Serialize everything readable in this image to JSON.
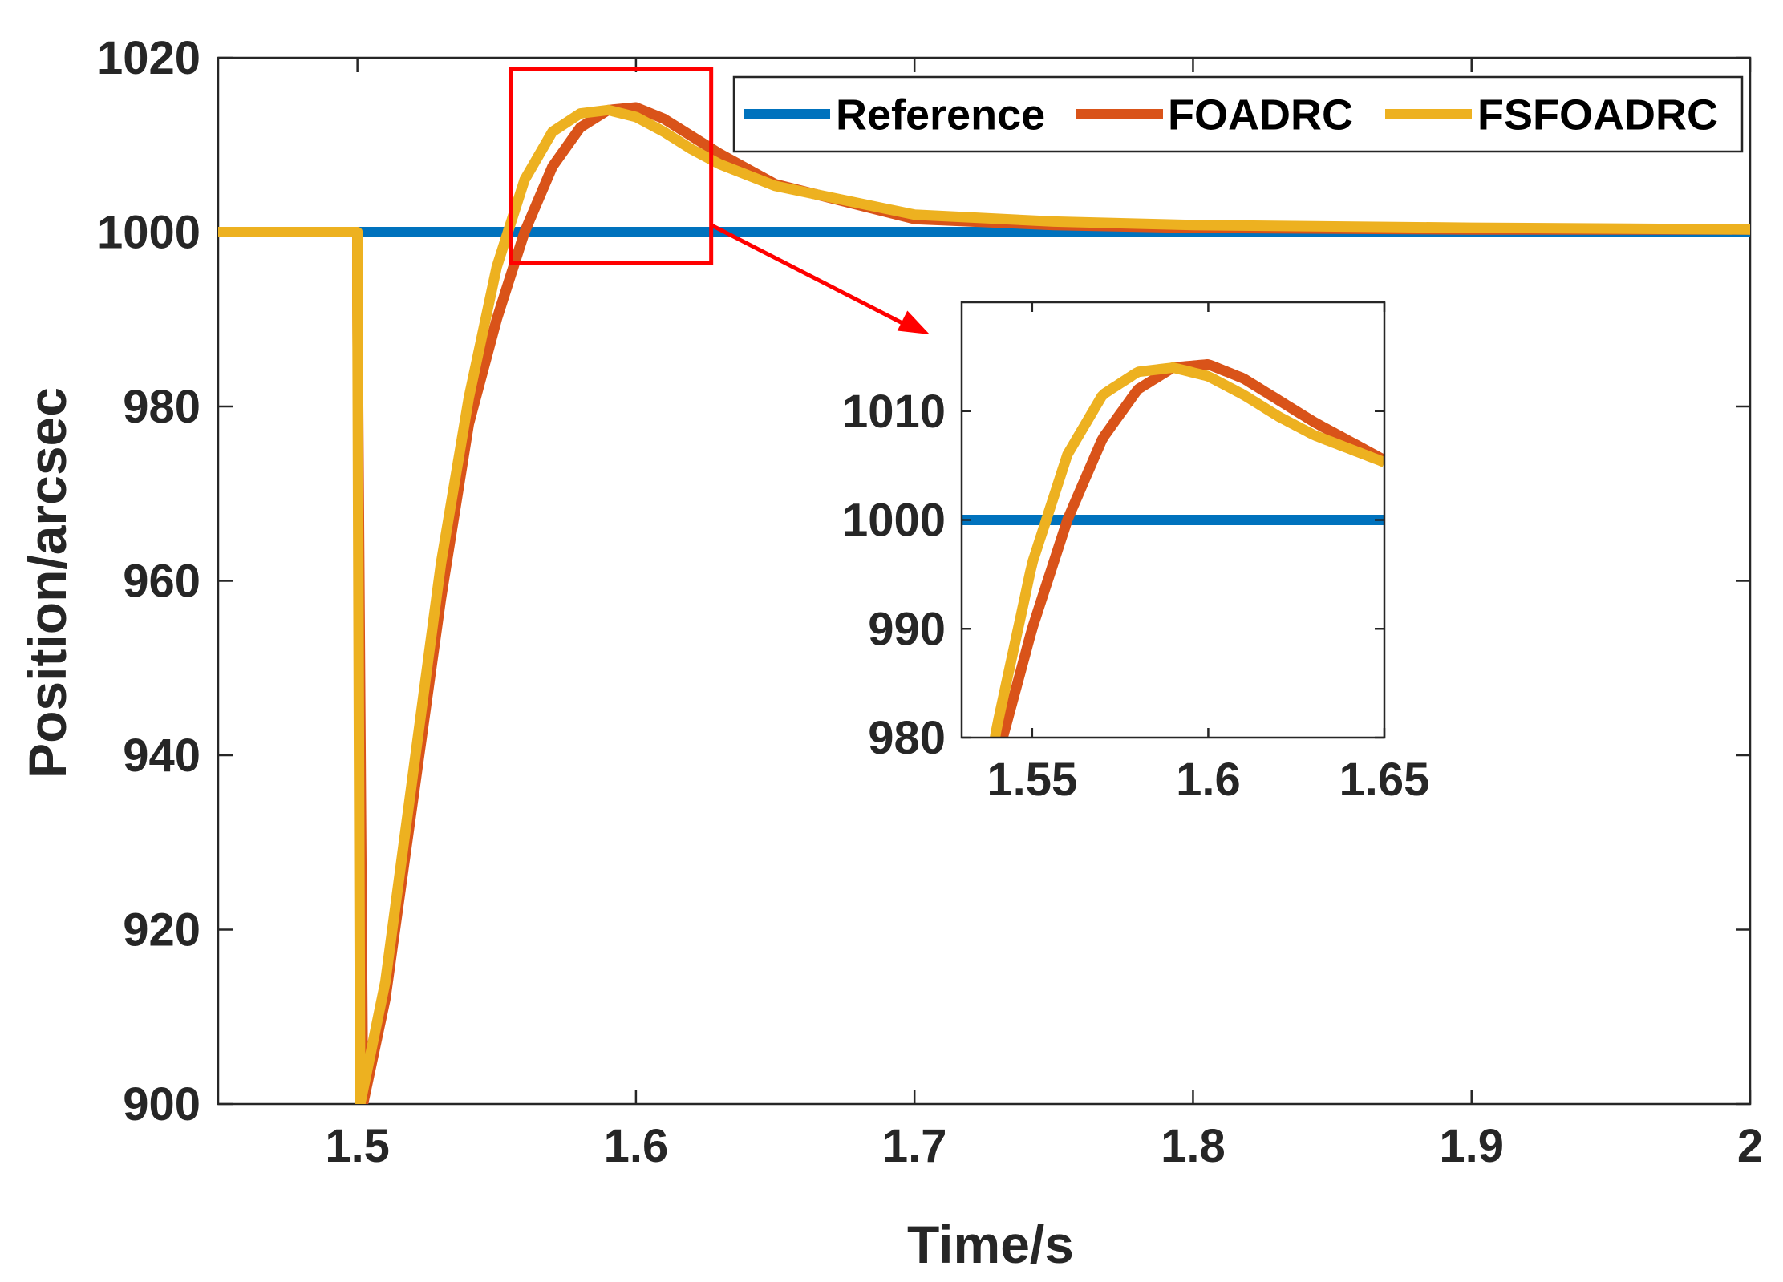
{
  "chart_data": {
    "type": "line",
    "title": "",
    "xlabel": "Time/s",
    "ylabel": "Position/arcsec",
    "xlim": [
      1.45,
      2.0
    ],
    "ylim": [
      900,
      1020
    ],
    "xticks": [
      1.5,
      1.6,
      1.7,
      1.8,
      1.9,
      2.0
    ],
    "xtick_labels": [
      "1.5",
      "1.6",
      "1.7",
      "1.8",
      "1.9",
      "2"
    ],
    "yticks": [
      900,
      920,
      940,
      960,
      980,
      1000,
      1020
    ],
    "ytick_labels": [
      "900",
      "920",
      "940",
      "960",
      "980",
      "1000",
      "1020"
    ],
    "grid": false,
    "legend_position": "top-right",
    "series": [
      {
        "name": "Reference",
        "color": "#0072BD",
        "x": [
          1.45,
          2.0
        ],
        "y": [
          1000,
          1000
        ]
      },
      {
        "name": "FOADRC",
        "color": "#D95319",
        "x": [
          1.45,
          1.5,
          1.5,
          1.502,
          1.51,
          1.52,
          1.53,
          1.54,
          1.55,
          1.555,
          1.56,
          1.57,
          1.58,
          1.59,
          1.6,
          1.61,
          1.62,
          1.63,
          1.65,
          1.7,
          1.75,
          1.8,
          1.9,
          2.0
        ],
        "y": [
          1000,
          1000,
          992,
          900,
          912,
          935,
          958,
          978,
          990,
          995,
          1000,
          1007.5,
          1012,
          1014,
          1014.3,
          1013,
          1011,
          1009,
          1005.5,
          1001.5,
          1000.8,
          1000.5,
          1000.3,
          1000.3
        ]
      },
      {
        "name": "FSFOADRC",
        "color": "#EDB120",
        "x": [
          1.45,
          1.5,
          1.5,
          1.501,
          1.51,
          1.52,
          1.53,
          1.54,
          1.55,
          1.56,
          1.57,
          1.58,
          1.59,
          1.6,
          1.61,
          1.62,
          1.63,
          1.65,
          1.7,
          1.75,
          1.8,
          1.9,
          2.0
        ],
        "y": [
          1000,
          1000,
          992,
          900,
          914,
          938,
          962,
          981,
          996,
          1006,
          1011.5,
          1013.6,
          1014,
          1013.2,
          1011.5,
          1009.5,
          1007.8,
          1005.3,
          1002,
          1001.2,
          1000.8,
          1000.5,
          1000.3
        ]
      }
    ],
    "zoom_box": {
      "xlim": [
        1.555,
        1.627
      ],
      "ylim": [
        996.5,
        1018.7
      ]
    },
    "inset": {
      "xlim": [
        1.53,
        1.65
      ],
      "ylim": [
        980,
        1020
      ],
      "xticks": [
        1.55,
        1.6,
        1.65
      ],
      "xtick_labels": [
        "1.55",
        "1.6",
        "1.65"
      ],
      "yticks": [
        980,
        990,
        1000,
        1010
      ],
      "ytick_labels": [
        "980",
        "990",
        "1000",
        "1010"
      ]
    }
  },
  "legend": {
    "items": [
      {
        "label": "Reference",
        "color": "#0072BD"
      },
      {
        "label": "FOADRC",
        "color": "#D95319"
      },
      {
        "label": "FSFOADRC",
        "color": "#EDB120"
      }
    ]
  }
}
